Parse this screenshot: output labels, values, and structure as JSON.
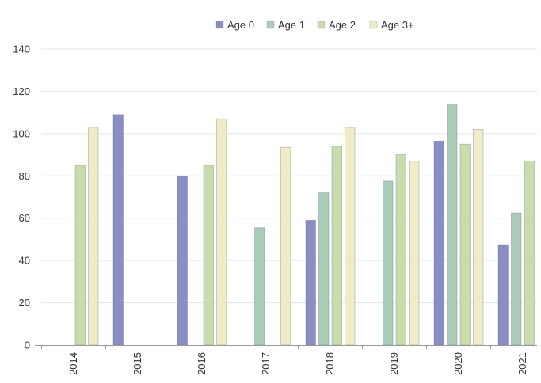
{
  "chart_data": {
    "type": "bar",
    "categories": [
      "2014",
      "2015",
      "2016",
      "2017",
      "2018",
      "2019",
      "2020",
      "2021"
    ],
    "series": [
      {
        "name": "Age 0",
        "color": "#8a8ec4",
        "values": [
          null,
          109,
          80,
          null,
          59,
          null,
          96.5,
          47.5
        ]
      },
      {
        "name": "Age 1",
        "color": "#a9cdb9",
        "values": [
          null,
          null,
          null,
          55.5,
          72,
          77.5,
          114,
          62.5
        ]
      },
      {
        "name": "Age 2",
        "color": "#c9dcae",
        "values": [
          85,
          null,
          85,
          null,
          94,
          90,
          95,
          87
        ]
      },
      {
        "name": "Age 3+",
        "color": "#f1ecc8",
        "values": [
          103,
          null,
          107,
          93.5,
          103,
          87,
          102,
          null
        ]
      }
    ],
    "yticks": [
      "0",
      "20",
      "40",
      "60",
      "80",
      "100",
      "120",
      "140"
    ],
    "ylim": [
      0,
      140
    ],
    "grid": true,
    "legend": "top-center"
  }
}
